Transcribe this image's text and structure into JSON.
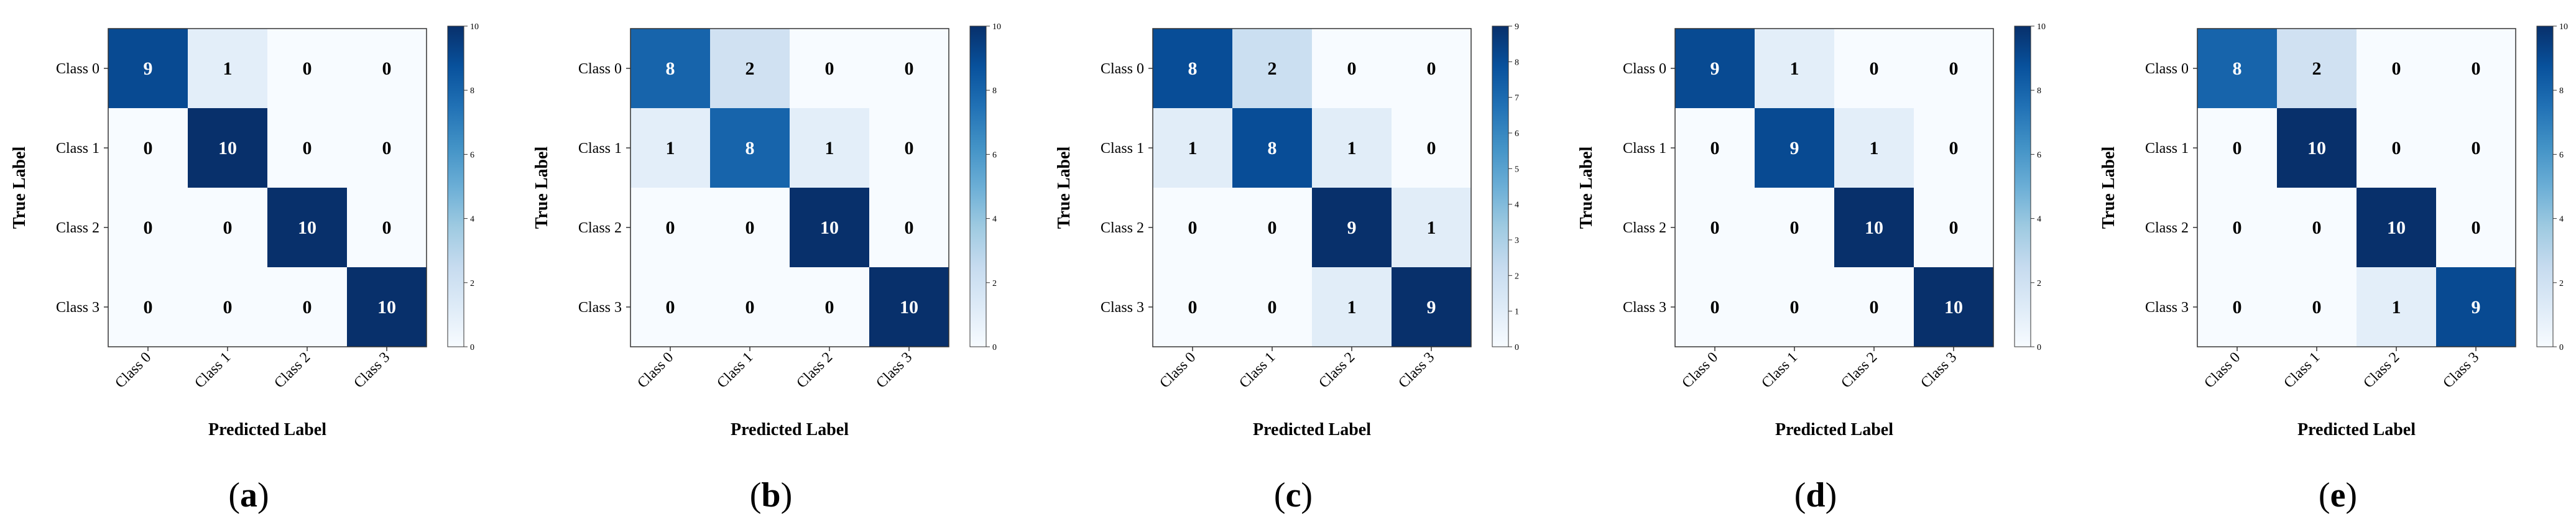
{
  "figure": {
    "panels": [
      {
        "caption": "(a)"
      },
      {
        "caption": "(b)"
      },
      {
        "caption": "(c)"
      },
      {
        "caption": "(d)"
      },
      {
        "caption": "(e)"
      }
    ]
  },
  "chart_data": [
    {
      "type": "heatmap",
      "xlabel": "Predicted Label",
      "ylabel": "True Label",
      "x_categories": [
        "Class 0",
        "Class 1",
        "Class 2",
        "Class 3"
      ],
      "y_categories": [
        "Class 0",
        "Class 1",
        "Class 2",
        "Class 3"
      ],
      "values": [
        [
          9,
          1,
          0,
          0
        ],
        [
          0,
          10,
          0,
          0
        ],
        [
          0,
          0,
          10,
          0
        ],
        [
          0,
          0,
          0,
          10
        ]
      ],
      "colorbar": {
        "min": 0,
        "max": 10,
        "ticks": [
          0,
          2,
          4,
          6,
          8,
          10
        ]
      },
      "colormap": [
        "#f7fbff",
        "#deebf7",
        "#c6dbef",
        "#9ecae1",
        "#6baed6",
        "#4292c6",
        "#2171b5",
        "#08519c",
        "#08306b"
      ]
    },
    {
      "type": "heatmap",
      "xlabel": "Predicted Label",
      "ylabel": "True Label",
      "x_categories": [
        "Class 0",
        "Class 1",
        "Class 2",
        "Class 3"
      ],
      "y_categories": [
        "Class 0",
        "Class 1",
        "Class 2",
        "Class 3"
      ],
      "values": [
        [
          8,
          2,
          0,
          0
        ],
        [
          1,
          8,
          1,
          0
        ],
        [
          0,
          0,
          10,
          0
        ],
        [
          0,
          0,
          0,
          10
        ]
      ],
      "colorbar": {
        "min": 0,
        "max": 10,
        "ticks": [
          0,
          2,
          4,
          6,
          8,
          10
        ]
      },
      "colormap": [
        "#f7fbff",
        "#deebf7",
        "#c6dbef",
        "#9ecae1",
        "#6baed6",
        "#4292c6",
        "#2171b5",
        "#08519c",
        "#08306b"
      ]
    },
    {
      "type": "heatmap",
      "xlabel": "Predicted Label",
      "ylabel": "True Label",
      "x_categories": [
        "Class 0",
        "Class 1",
        "Class 2",
        "Class 3"
      ],
      "y_categories": [
        "Class 0",
        "Class 1",
        "Class 2",
        "Class 3"
      ],
      "values": [
        [
          8,
          2,
          0,
          0
        ],
        [
          1,
          8,
          1,
          0
        ],
        [
          0,
          0,
          9,
          1
        ],
        [
          0,
          0,
          1,
          9
        ]
      ],
      "colorbar": {
        "min": 0,
        "max": 9,
        "ticks": [
          0,
          1,
          2,
          3,
          4,
          5,
          6,
          7,
          8,
          9
        ]
      },
      "colormap": [
        "#f7fbff",
        "#deebf7",
        "#c6dbef",
        "#9ecae1",
        "#6baed6",
        "#4292c6",
        "#2171b5",
        "#08519c",
        "#08306b"
      ]
    },
    {
      "type": "heatmap",
      "xlabel": "Predicted Label",
      "ylabel": "True Label",
      "x_categories": [
        "Class 0",
        "Class 1",
        "Class 2",
        "Class 3"
      ],
      "y_categories": [
        "Class 0",
        "Class 1",
        "Class 2",
        "Class 3"
      ],
      "values": [
        [
          9,
          1,
          0,
          0
        ],
        [
          0,
          9,
          1,
          0
        ],
        [
          0,
          0,
          10,
          0
        ],
        [
          0,
          0,
          0,
          10
        ]
      ],
      "colorbar": {
        "min": 0,
        "max": 10,
        "ticks": [
          0,
          2,
          4,
          6,
          8,
          10
        ]
      },
      "colormap": [
        "#f7fbff",
        "#deebf7",
        "#c6dbef",
        "#9ecae1",
        "#6baed6",
        "#4292c6",
        "#2171b5",
        "#08519c",
        "#08306b"
      ]
    },
    {
      "type": "heatmap",
      "xlabel": "Predicted Label",
      "ylabel": "True Label",
      "x_categories": [
        "Class 0",
        "Class 1",
        "Class 2",
        "Class 3"
      ],
      "y_categories": [
        "Class 0",
        "Class 1",
        "Class 2",
        "Class 3"
      ],
      "values": [
        [
          8,
          2,
          0,
          0
        ],
        [
          0,
          10,
          0,
          0
        ],
        [
          0,
          0,
          10,
          0
        ],
        [
          0,
          0,
          1,
          9
        ]
      ],
      "colorbar": {
        "min": 0,
        "max": 10,
        "ticks": [
          0,
          2,
          4,
          6,
          8,
          10
        ]
      },
      "colormap": [
        "#f7fbff",
        "#deebf7",
        "#c6dbef",
        "#9ecae1",
        "#6baed6",
        "#4292c6",
        "#2171b5",
        "#08519c",
        "#08306b"
      ]
    }
  ]
}
